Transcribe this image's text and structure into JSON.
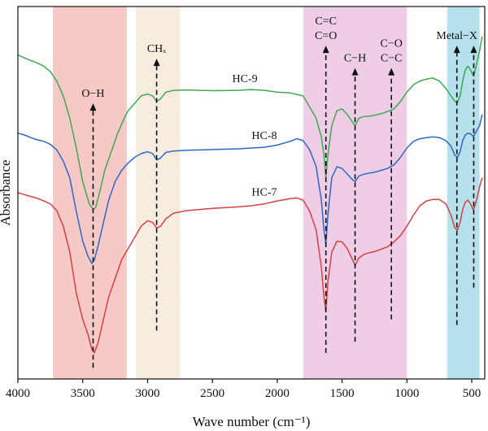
{
  "chart_data": {
    "type": "line",
    "xlabel": "Wave number (cm⁻¹)",
    "ylabel": "Absorbance",
    "xlim": [
      4000,
      400
    ],
    "x_ticks": [
      4000,
      3500,
      3000,
      2500,
      2000,
      1500,
      1000,
      500
    ],
    "x_ticklabels": [
      "4000",
      "3500",
      "3000",
      "2500",
      "2000",
      "1500",
      "1000",
      "500"
    ],
    "y_ticks_shown": false,
    "legend": "none",
    "bands": [
      {
        "from": 3730,
        "to": 3160,
        "color": "#f6c9c6"
      },
      {
        "from": 3090,
        "to": 2750,
        "color": "#f7ece0"
      },
      {
        "from": 1800,
        "to": 1000,
        "color": "#efcde6"
      },
      {
        "from": 690,
        "to": 440,
        "color": "#b6e0ec"
      }
    ],
    "series": [
      {
        "name": "HC-9",
        "color": "#3daa52",
        "label_x": 2250,
        "points": [
          [
            4000,
            0.87
          ],
          [
            3950,
            0.862
          ],
          [
            3900,
            0.855
          ],
          [
            3850,
            0.848
          ],
          [
            3800,
            0.84
          ],
          [
            3750,
            0.825
          ],
          [
            3700,
            0.8
          ],
          [
            3650,
            0.76
          ],
          [
            3600,
            0.7
          ],
          [
            3550,
            0.62
          ],
          [
            3500,
            0.53
          ],
          [
            3450,
            0.47
          ],
          [
            3420,
            0.455
          ],
          [
            3400,
            0.46
          ],
          [
            3370,
            0.5
          ],
          [
            3330,
            0.56
          ],
          [
            3280,
            0.61
          ],
          [
            3230,
            0.66
          ],
          [
            3180,
            0.7
          ],
          [
            3150,
            0.72
          ],
          [
            3100,
            0.74
          ],
          [
            3050,
            0.76
          ],
          [
            3000,
            0.765
          ],
          [
            2960,
            0.76
          ],
          [
            2930,
            0.745
          ],
          [
            2900,
            0.752
          ],
          [
            2860,
            0.77
          ],
          [
            2800,
            0.775
          ],
          [
            2700,
            0.776
          ],
          [
            2500,
            0.774
          ],
          [
            2300,
            0.775
          ],
          [
            2200,
            0.777
          ],
          [
            2100,
            0.775
          ],
          [
            2000,
            0.77
          ],
          [
            1900,
            0.768
          ],
          [
            1800,
            0.76
          ],
          [
            1750,
            0.73
          ],
          [
            1700,
            0.7
          ],
          [
            1660,
            0.65
          ],
          [
            1640,
            0.6
          ],
          [
            1625,
            0.54
          ],
          [
            1610,
            0.6
          ],
          [
            1580,
            0.68
          ],
          [
            1540,
            0.72
          ],
          [
            1500,
            0.725
          ],
          [
            1460,
            0.71
          ],
          [
            1420,
            0.69
          ],
          [
            1400,
            0.68
          ],
          [
            1370,
            0.7
          ],
          [
            1330,
            0.705
          ],
          [
            1300,
            0.705
          ],
          [
            1250,
            0.708
          ],
          [
            1200,
            0.712
          ],
          [
            1150,
            0.718
          ],
          [
            1100,
            0.725
          ],
          [
            1050,
            0.745
          ],
          [
            1000,
            0.77
          ],
          [
            950,
            0.79
          ],
          [
            900,
            0.8
          ],
          [
            850,
            0.805
          ],
          [
            800,
            0.808
          ],
          [
            750,
            0.8
          ],
          [
            700,
            0.78
          ],
          [
            660,
            0.76
          ],
          [
            630,
            0.745
          ],
          [
            610,
            0.742
          ],
          [
            590,
            0.76
          ],
          [
            570,
            0.8
          ],
          [
            550,
            0.83
          ],
          [
            530,
            0.84
          ],
          [
            510,
            0.83
          ],
          [
            490,
            0.815
          ],
          [
            480,
            0.82
          ],
          [
            460,
            0.85
          ],
          [
            440,
            0.88
          ],
          [
            420,
            0.92
          ]
        ]
      },
      {
        "name": "HC-8",
        "color": "#2c68c9",
        "label_x": 2100,
        "points": [
          [
            4000,
            0.66
          ],
          [
            3950,
            0.655
          ],
          [
            3900,
            0.648
          ],
          [
            3850,
            0.642
          ],
          [
            3800,
            0.638
          ],
          [
            3750,
            0.63
          ],
          [
            3700,
            0.615
          ],
          [
            3650,
            0.585
          ],
          [
            3600,
            0.54
          ],
          [
            3550,
            0.45
          ],
          [
            3500,
            0.37
          ],
          [
            3460,
            0.33
          ],
          [
            3430,
            0.31
          ],
          [
            3410,
            0.32
          ],
          [
            3380,
            0.36
          ],
          [
            3340,
            0.42
          ],
          [
            3300,
            0.48
          ],
          [
            3250,
            0.53
          ],
          [
            3200,
            0.56
          ],
          [
            3150,
            0.58
          ],
          [
            3100,
            0.595
          ],
          [
            3050,
            0.605
          ],
          [
            3000,
            0.61
          ],
          [
            2960,
            0.605
          ],
          [
            2930,
            0.588
          ],
          [
            2900,
            0.593
          ],
          [
            2860,
            0.608
          ],
          [
            2800,
            0.612
          ],
          [
            2700,
            0.614
          ],
          [
            2500,
            0.616
          ],
          [
            2300,
            0.618
          ],
          [
            2200,
            0.62
          ],
          [
            2100,
            0.622
          ],
          [
            2000,
            0.628
          ],
          [
            1900,
            0.638
          ],
          [
            1850,
            0.645
          ],
          [
            1800,
            0.64
          ],
          [
            1750,
            0.615
          ],
          [
            1700,
            0.57
          ],
          [
            1660,
            0.48
          ],
          [
            1640,
            0.4
          ],
          [
            1625,
            0.36
          ],
          [
            1610,
            0.44
          ],
          [
            1580,
            0.54
          ],
          [
            1540,
            0.57
          ],
          [
            1500,
            0.565
          ],
          [
            1460,
            0.55
          ],
          [
            1420,
            0.535
          ],
          [
            1400,
            0.53
          ],
          [
            1370,
            0.545
          ],
          [
            1330,
            0.55
          ],
          [
            1300,
            0.552
          ],
          [
            1250,
            0.555
          ],
          [
            1200,
            0.56
          ],
          [
            1150,
            0.565
          ],
          [
            1100,
            0.575
          ],
          [
            1050,
            0.595
          ],
          [
            1000,
            0.62
          ],
          [
            950,
            0.638
          ],
          [
            900,
            0.645
          ],
          [
            850,
            0.648
          ],
          [
            800,
            0.65
          ],
          [
            750,
            0.648
          ],
          [
            700,
            0.64
          ],
          [
            660,
            0.625
          ],
          [
            630,
            0.6
          ],
          [
            610,
            0.595
          ],
          [
            590,
            0.61
          ],
          [
            570,
            0.64
          ],
          [
            550,
            0.655
          ],
          [
            530,
            0.66
          ],
          [
            510,
            0.658
          ],
          [
            490,
            0.652
          ],
          [
            480,
            0.655
          ],
          [
            460,
            0.668
          ],
          [
            440,
            0.68
          ],
          [
            420,
            0.71
          ]
        ]
      },
      {
        "name": "HC-7",
        "color": "#d94040",
        "label_x": 2100,
        "points": [
          [
            4000,
            0.5
          ],
          [
            3950,
            0.495
          ],
          [
            3900,
            0.49
          ],
          [
            3850,
            0.485
          ],
          [
            3800,
            0.478
          ],
          [
            3750,
            0.47
          ],
          [
            3700,
            0.452
          ],
          [
            3650,
            0.41
          ],
          [
            3600,
            0.34
          ],
          [
            3550,
            0.23
          ],
          [
            3500,
            0.16
          ],
          [
            3460,
            0.12
          ],
          [
            3430,
            0.08
          ],
          [
            3410,
            0.07
          ],
          [
            3380,
            0.1
          ],
          [
            3340,
            0.16
          ],
          [
            3300,
            0.22
          ],
          [
            3250,
            0.27
          ],
          [
            3200,
            0.32
          ],
          [
            3150,
            0.35
          ],
          [
            3100,
            0.38
          ],
          [
            3050,
            0.41
          ],
          [
            3000,
            0.425
          ],
          [
            2960,
            0.42
          ],
          [
            2930,
            0.405
          ],
          [
            2900,
            0.41
          ],
          [
            2860,
            0.43
          ],
          [
            2800,
            0.445
          ],
          [
            2700,
            0.452
          ],
          [
            2500,
            0.458
          ],
          [
            2300,
            0.462
          ],
          [
            2200,
            0.465
          ],
          [
            2100,
            0.47
          ],
          [
            2000,
            0.478
          ],
          [
            1900,
            0.484
          ],
          [
            1850,
            0.486
          ],
          [
            1800,
            0.48
          ],
          [
            1750,
            0.45
          ],
          [
            1700,
            0.4
          ],
          [
            1660,
            0.3
          ],
          [
            1640,
            0.22
          ],
          [
            1625,
            0.18
          ],
          [
            1610,
            0.26
          ],
          [
            1580,
            0.34
          ],
          [
            1540,
            0.37
          ],
          [
            1500,
            0.368
          ],
          [
            1460,
            0.35
          ],
          [
            1420,
            0.32
          ],
          [
            1400,
            0.305
          ],
          [
            1370,
            0.325
          ],
          [
            1330,
            0.335
          ],
          [
            1300,
            0.338
          ],
          [
            1250,
            0.342
          ],
          [
            1200,
            0.348
          ],
          [
            1150,
            0.355
          ],
          [
            1100,
            0.368
          ],
          [
            1050,
            0.385
          ],
          [
            1000,
            0.41
          ],
          [
            950,
            0.44
          ],
          [
            900,
            0.465
          ],
          [
            850,
            0.478
          ],
          [
            800,
            0.482
          ],
          [
            750,
            0.482
          ],
          [
            700,
            0.47
          ],
          [
            660,
            0.44
          ],
          [
            630,
            0.405
          ],
          [
            610,
            0.4
          ],
          [
            590,
            0.42
          ],
          [
            570,
            0.455
          ],
          [
            550,
            0.475
          ],
          [
            530,
            0.48
          ],
          [
            510,
            0.47
          ],
          [
            490,
            0.455
          ],
          [
            480,
            0.46
          ],
          [
            460,
            0.485
          ],
          [
            440,
            0.515
          ],
          [
            420,
            0.54
          ]
        ]
      }
    ],
    "annotations": [
      {
        "label_lines": [
          "O−H"
        ],
        "x": 3420,
        "arrow_top": 0.74,
        "arrow_bottom": 0.03
      },
      {
        "label_lines": [
          "CHₓ"
        ],
        "x": 2930,
        "arrow_top": 0.86,
        "arrow_bottom": 0.13
      },
      {
        "label_lines": [
          "C=C",
          "C=O"
        ],
        "x": 1625,
        "arrow_top": 0.895,
        "arrow_bottom": 0.07
      },
      {
        "label_lines": [
          "C−H"
        ],
        "x": 1400,
        "arrow_top": 0.835,
        "arrow_bottom": 0.1
      },
      {
        "label_lines": [
          "C−O",
          "C−C"
        ],
        "x": 1120,
        "arrow_top": 0.835,
        "arrow_bottom": 0.16
      },
      {
        "label_lines": [
          "Metal−X"
        ],
        "x": 615,
        "arrow_top": 0.895,
        "arrow_bottom": 0.145
      },
      {
        "label_lines": [],
        "x": 485,
        "arrow_top": 0.895,
        "arrow_bottom": 0.245
      }
    ]
  }
}
